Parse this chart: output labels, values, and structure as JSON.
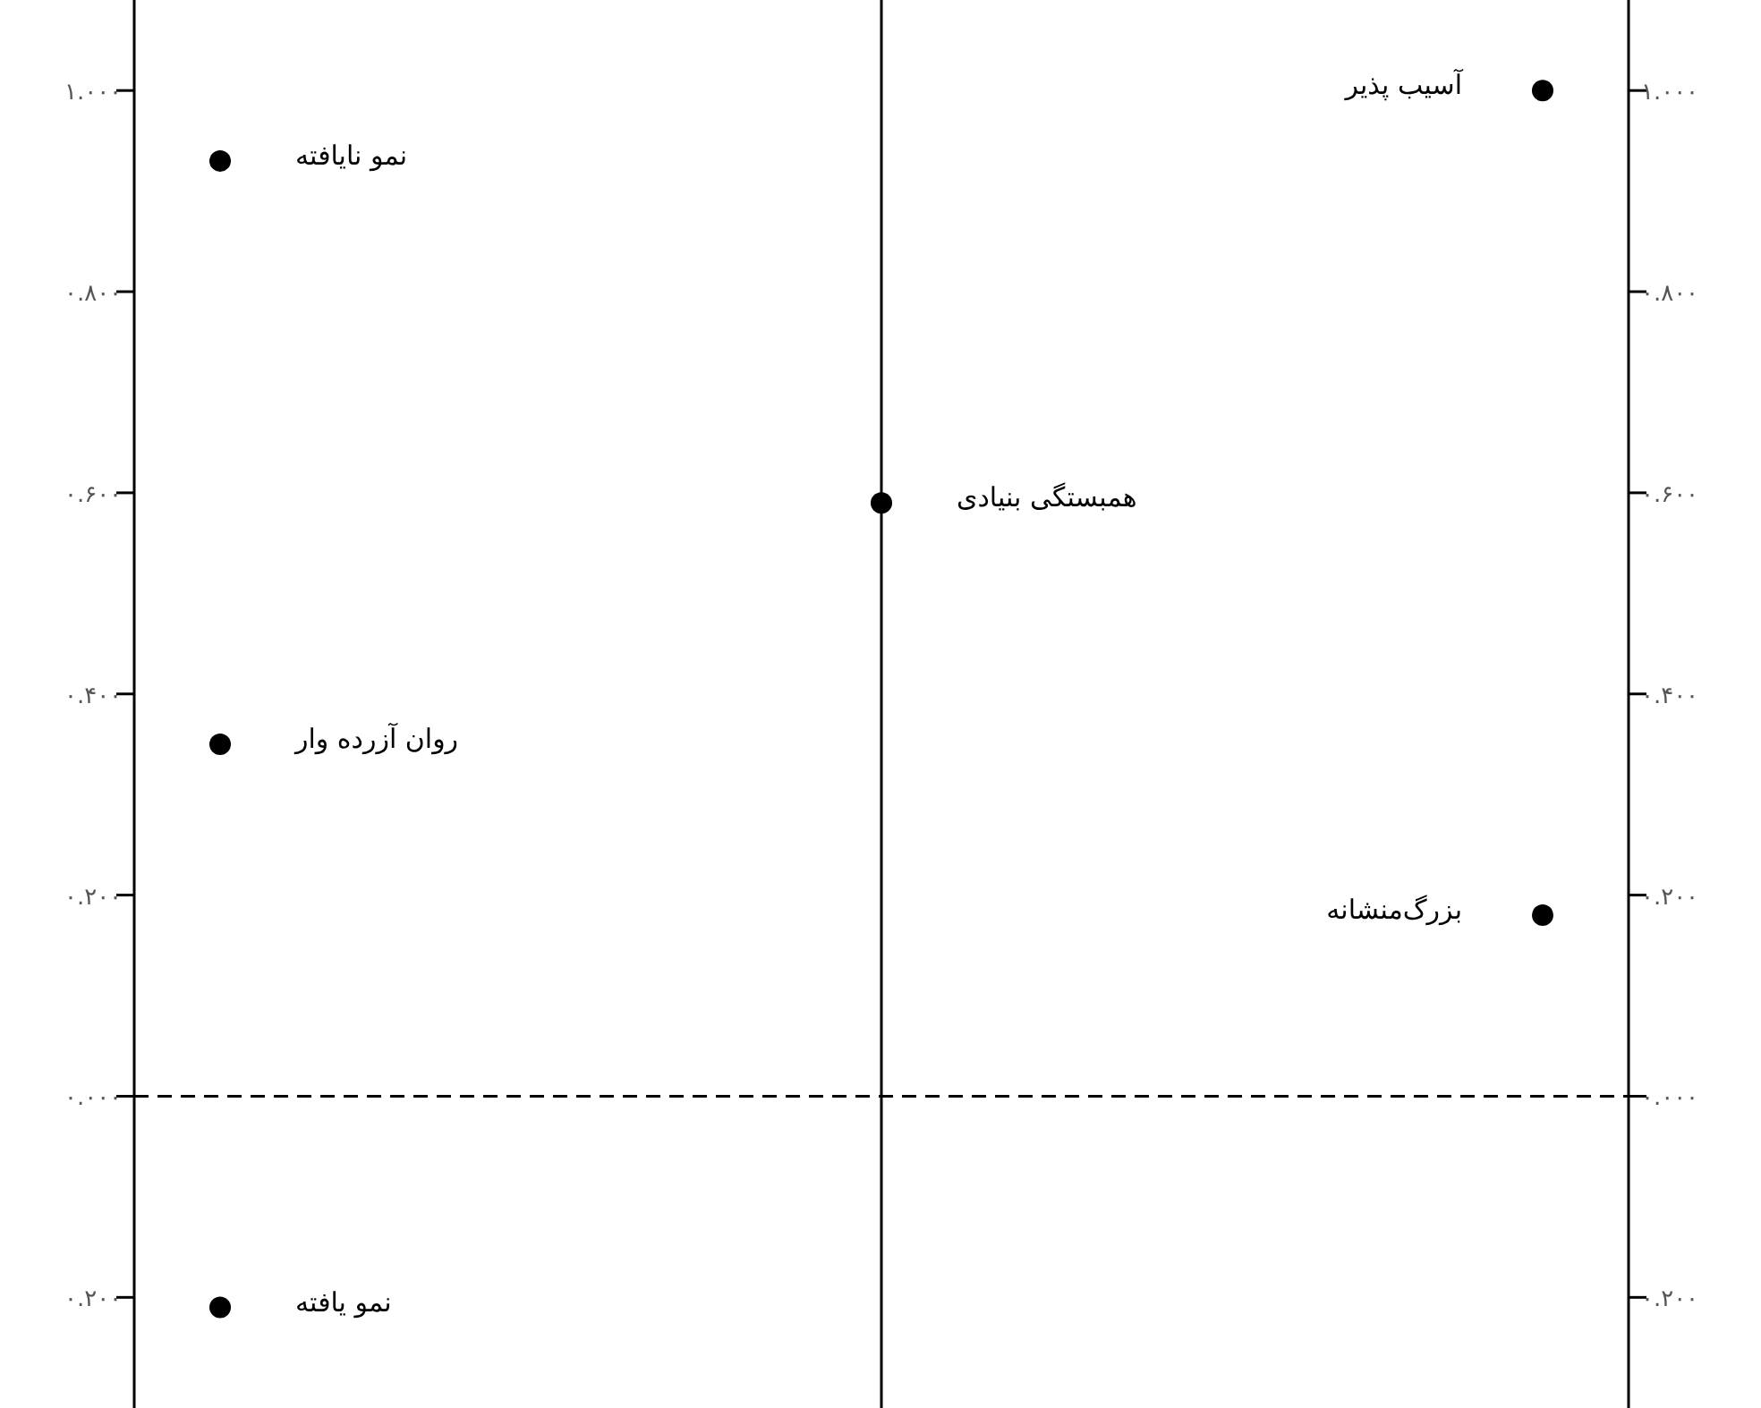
{
  "chart_data": {
    "type": "scatter",
    "categories": [
      null,
      null,
      null
    ],
    "series": [
      {
        "name": "نمو نایافته",
        "color": "#000000",
        "values": [
          0.93,
          null,
          null
        ]
      },
      {
        "name": "روان آزرده وار",
        "color": "#000000",
        "values": [
          0.35,
          null,
          null
        ]
      },
      {
        "name": "نمو یافته",
        "color": "#000000",
        "values": [
          -0.21,
          null,
          null
        ]
      },
      {
        "name": "همبستگی بنیادی",
        "color": "#000000",
        "values": [
          null,
          0.59,
          null
        ]
      },
      {
        "name": "آسیب پذیر",
        "color": "#000000",
        "values": [
          null,
          null,
          1.0
        ]
      },
      {
        "name": "بزرگ‌منشانه",
        "color": "#000000",
        "values": [
          null,
          null,
          0.18
        ]
      }
    ],
    "ylim": [
      -0.31,
      1.09
    ],
    "yticks": [
      {
        "value": -0.2,
        "label": "۰.۲۰۰"
      },
      {
        "value": 0,
        "label": "۰.۰۰۰"
      },
      {
        "value": 0.2,
        "label": "۰.۲۰۰"
      },
      {
        "value": 0.4,
        "label": "۰.۴۰۰"
      },
      {
        "value": 0.6,
        "label": "۰.۶۰۰"
      },
      {
        "value": 0.8,
        "label": "۰.۸۰۰"
      },
      {
        "value": 1.0,
        "label": "۱.۰۰۰"
      }
    ],
    "y2lim": [
      -0.31,
      1.09
    ],
    "y2ticks": [
      {
        "value": -0.2,
        "label": "۰.۲۰۰"
      },
      {
        "value": 0,
        "label": "۰.۰۰۰"
      },
      {
        "value": 0.2,
        "label": "۰.۲۰۰"
      },
      {
        "value": 0.4,
        "label": "۰.۴۰۰"
      },
      {
        "value": 0.6,
        "label": "۰.۶۰۰"
      },
      {
        "value": 0.8,
        "label": "۰.۸۰۰"
      },
      {
        "value": 1.0,
        "label": "۱.۰۰۰"
      }
    ],
    "ref_lines": [
      {
        "axis": "y",
        "value": 0,
        "line_style": "dashed",
        "color": "#000000"
      }
    ],
    "marker": "circle"
  }
}
